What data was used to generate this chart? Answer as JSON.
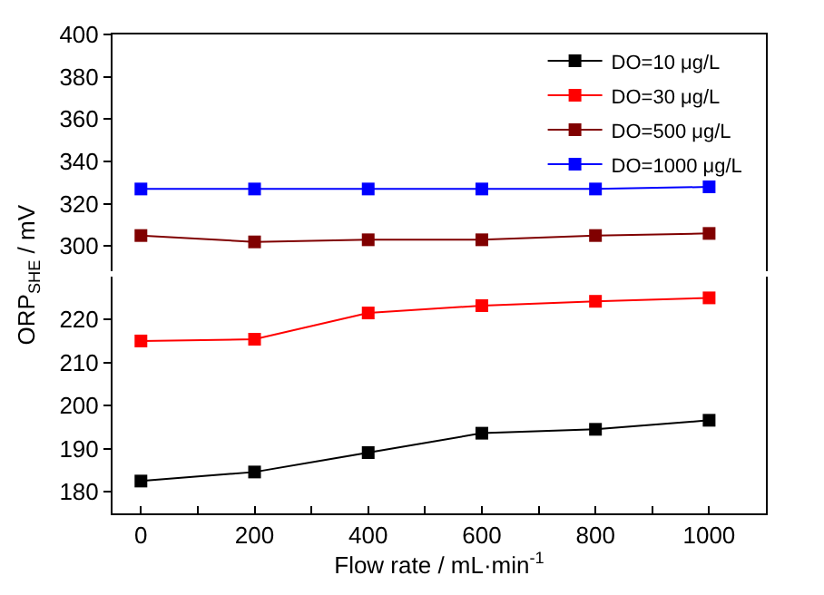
{
  "chart_data": [
    {
      "type": "line",
      "x": [
        0,
        200,
        400,
        600,
        800,
        1000
      ],
      "xlim": [
        -50,
        1100
      ],
      "ylim": [
        288,
        400
      ],
      "yticks": [
        300,
        320,
        340,
        360,
        380,
        400
      ],
      "tick_labels": "y",
      "legend": "top right",
      "marker": "square",
      "line_style": "solid",
      "series": [
        {
          "name": "DO=10 μg/L",
          "color": "#000000",
          "values": [
            null,
            null,
            null,
            null,
            null,
            null
          ]
        },
        {
          "name": "DO=30 μg/L",
          "color": "#ff0000",
          "values": [
            null,
            null,
            null,
            null,
            null,
            null
          ]
        },
        {
          "name": "DO=500 μg/L",
          "color": "#800000",
          "values": [
            305,
            302,
            303,
            303,
            305,
            306
          ]
        },
        {
          "name": "DO=1000 μg/L",
          "color": "#0000ff",
          "values": [
            327,
            327,
            327,
            327,
            327,
            328
          ]
        }
      ]
    },
    {
      "type": "line",
      "x": [
        0,
        200,
        400,
        600,
        800,
        1000
      ],
      "xlim": [
        -50,
        1100
      ],
      "ylim": [
        175,
        230
      ],
      "yticks": [
        180,
        190,
        200,
        210,
        220
      ],
      "xticks": [
        0,
        {
          "value": 100,
          "label": null
        },
        200,
        {
          "value": 300,
          "label": null
        },
        400,
        {
          "value": 500,
          "label": null
        },
        600,
        {
          "value": 700,
          "label": null
        },
        800,
        {
          "value": 900,
          "label": null
        },
        1000
      ],
      "xlabel": "Flow rate / mL·min$^{-1}$",
      "ylabel": "ORP$_{SHE}$ / mV",
      "marker": "square",
      "line_style": "solid",
      "series": [
        {
          "color": "#000000",
          "values": [
            182.5,
            184.6,
            189.1,
            193.6,
            194.5,
            196.6
          ]
        },
        {
          "color": "#ff0000",
          "values": [
            215.0,
            215.4,
            221.5,
            223.2,
            224.2,
            225.0
          ]
        }
      ]
    }
  ]
}
